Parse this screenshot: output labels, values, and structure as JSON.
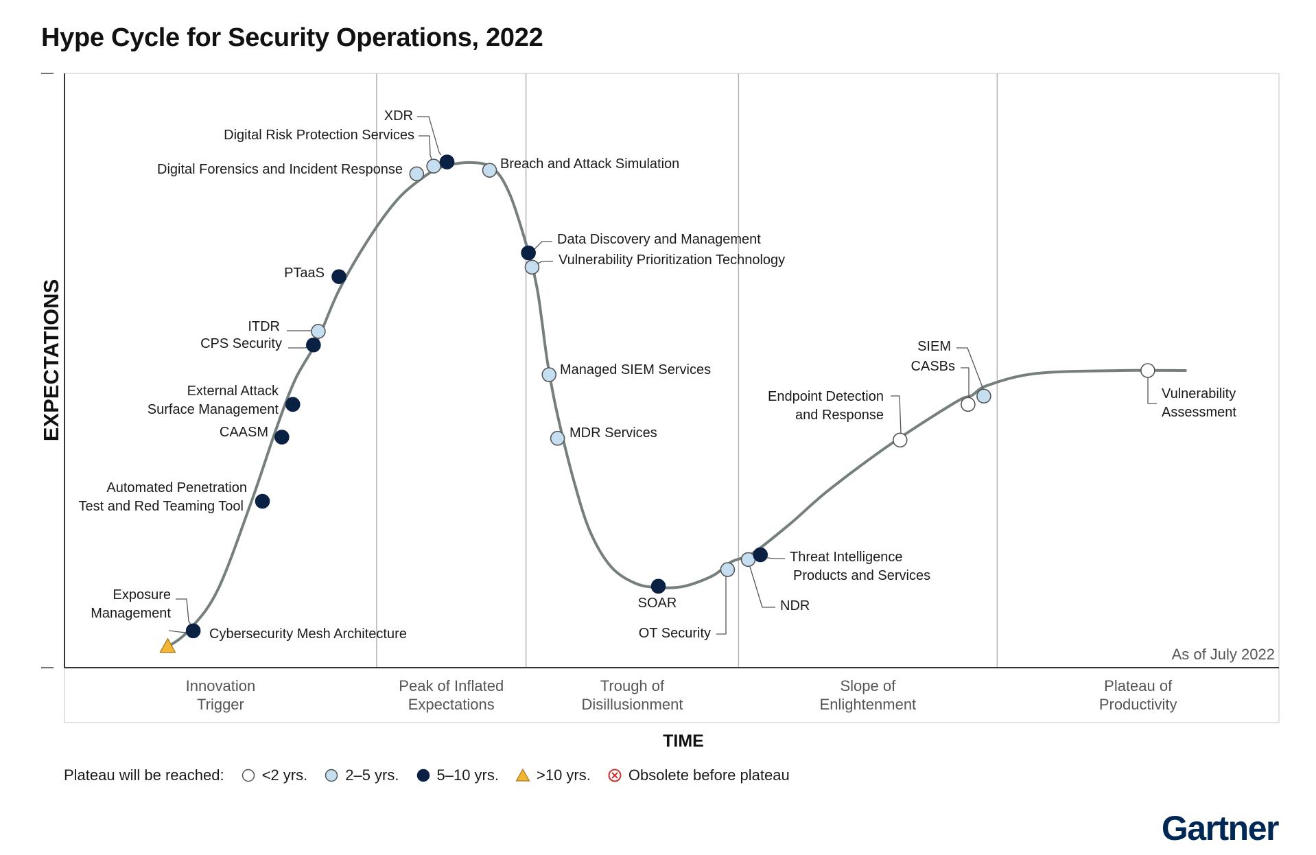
{
  "title": "Hype Cycle for Security Operations, 2022",
  "colors": {
    "lt2": "#ffffff",
    "y2_5": "#c6dff0",
    "y5_10": "#0b2144",
    "gt10": "#f2b632",
    "obsolete": "#d0312d",
    "curve": "#757f7b",
    "grid": "#b4b4b4",
    "brand": "#002856"
  },
  "legend": {
    "prefix": "Plateau will be reached:",
    "items": [
      {
        "key": "lt2",
        "label": "<2 yrs."
      },
      {
        "key": "y2_5",
        "label": "2–5 yrs."
      },
      {
        "key": "y5_10",
        "label": "5–10 yrs."
      },
      {
        "key": "gt10",
        "label": ">10 yrs."
      },
      {
        "key": "obsolete",
        "label": "Obsolete before plateau"
      }
    ]
  },
  "logo": "Gartner",
  "chart_data": {
    "type": "hype-cycle",
    "title": "Hype Cycle for Security Operations, 2022",
    "xlabel": "TIME",
    "ylabel": "EXPECTATIONS",
    "note": "As of July 2022",
    "x_unit": "percent of time axis",
    "y_unit": "percent of expectations axis",
    "phases": [
      {
        "lines": [
          "Innovation",
          "Trigger"
        ],
        "start": 0,
        "end": 25.7
      },
      {
        "lines": [
          "Peak of Inflated",
          "Expectations"
        ],
        "start": 25.7,
        "end": 38
      },
      {
        "lines": [
          "Trough of",
          "Disillusionment"
        ],
        "start": 38,
        "end": 55.5
      },
      {
        "lines": [
          "Slope of",
          "Enlightenment"
        ],
        "start": 55.5,
        "end": 76.8
      },
      {
        "lines": [
          "Plateau of",
          "Productivity"
        ],
        "start": 76.8,
        "end": 100
      }
    ],
    "curve": [
      [
        8.5,
        3.5
      ],
      [
        10.2,
        6.2
      ],
      [
        12.6,
        13
      ],
      [
        15.4,
        28
      ],
      [
        17.4,
        40
      ],
      [
        19,
        48.5
      ],
      [
        20.8,
        55
      ],
      [
        22.6,
        63.5
      ],
      [
        25,
        72
      ],
      [
        27.3,
        78.5
      ],
      [
        29.2,
        82
      ],
      [
        31,
        84.2
      ],
      [
        33.4,
        85
      ],
      [
        35.3,
        84
      ],
      [
        36.7,
        79.5
      ],
      [
        38.2,
        70
      ],
      [
        38.9,
        64
      ],
      [
        39.3,
        58.5
      ],
      [
        39.8,
        51
      ],
      [
        40.6,
        42.5
      ],
      [
        42,
        31
      ],
      [
        43.3,
        22.8
      ],
      [
        45,
        17
      ],
      [
        47,
        14.2
      ],
      [
        48.9,
        13.5
      ],
      [
        51,
        13.7
      ],
      [
        53.4,
        15.5
      ],
      [
        54.9,
        17.8
      ],
      [
        56.7,
        19.3
      ],
      [
        59.8,
        24.3
      ],
      [
        63,
        30
      ],
      [
        68.3,
        38
      ],
      [
        73.4,
        44.7
      ],
      [
        74.7,
        45.8
      ],
      [
        76,
        47.5
      ],
      [
        80,
        49.5
      ],
      [
        86.9,
        50
      ],
      [
        92.3,
        50
      ]
    ],
    "points": [
      {
        "name": "Cybersecurity Mesh Architecture",
        "x": 8.5,
        "y": 3.5,
        "plateau": ">10 yrs."
      },
      {
        "name": "Exposure Management",
        "x": 10.6,
        "y": 6.2,
        "plateau": "5-10 yrs."
      },
      {
        "name": "Automated Penetration Test and Red Teaming Tool",
        "x": 16.3,
        "y": 28,
        "plateau": "5-10 yrs."
      },
      {
        "name": "CAASM",
        "x": 17.9,
        "y": 38.8,
        "plateau": "5-10 yrs."
      },
      {
        "name": "External Attack Surface Management",
        "x": 18.8,
        "y": 44.3,
        "plateau": "5-10 yrs."
      },
      {
        "name": "CPS Security",
        "x": 20.5,
        "y": 54.3,
        "plateau": "5-10 yrs."
      },
      {
        "name": "ITDR",
        "x": 20.9,
        "y": 56.6,
        "plateau": "2-5 yrs."
      },
      {
        "name": "PTaaS",
        "x": 22.6,
        "y": 65.8,
        "plateau": "5-10 yrs."
      },
      {
        "name": "Digital Forensics and Incident Response",
        "x": 29,
        "y": 83.1,
        "plateau": "2-5 yrs."
      },
      {
        "name": "Digital Risk Protection Services",
        "x": 30.4,
        "y": 84.4,
        "plateau": "2-5 yrs."
      },
      {
        "name": "XDR",
        "x": 31.5,
        "y": 85.1,
        "plateau": "5-10 yrs."
      },
      {
        "name": "Breach and Attack Simulation",
        "x": 35,
        "y": 83.7,
        "plateau": "2-5 yrs."
      },
      {
        "name": "Data Discovery and Management",
        "x": 38.2,
        "y": 69.8,
        "plateau": "5-10 yrs."
      },
      {
        "name": "Vulnerability Prioritization Technology",
        "x": 38.5,
        "y": 67.4,
        "plateau": "2-5 yrs."
      },
      {
        "name": "Managed SIEM Services",
        "x": 39.9,
        "y": 49.3,
        "plateau": "2-5 yrs."
      },
      {
        "name": "MDR Services",
        "x": 40.6,
        "y": 38.6,
        "plateau": "2-5 yrs."
      },
      {
        "name": "SOAR",
        "x": 48.9,
        "y": 13.7,
        "plateau": "5-10 yrs."
      },
      {
        "name": "OT Security",
        "x": 54.6,
        "y": 16.5,
        "plateau": "2-5 yrs."
      },
      {
        "name": "NDR",
        "x": 56.3,
        "y": 18.2,
        "plateau": "2-5 yrs."
      },
      {
        "name": "Threat Intelligence Products and Services",
        "x": 57.3,
        "y": 19,
        "plateau": "5-10 yrs."
      },
      {
        "name": "Endpoint Detection and Response",
        "x": 68.8,
        "y": 38.3,
        "plateau": "<2 yrs."
      },
      {
        "name": "CASBs",
        "x": 74.4,
        "y": 44.3,
        "plateau": "<2 yrs."
      },
      {
        "name": "SIEM",
        "x": 75.7,
        "y": 45.7,
        "plateau": "2-5 yrs."
      },
      {
        "name": "Vulnerability Assessment",
        "x": 89.2,
        "y": 50,
        "plateau": "<2 yrs."
      }
    ]
  }
}
